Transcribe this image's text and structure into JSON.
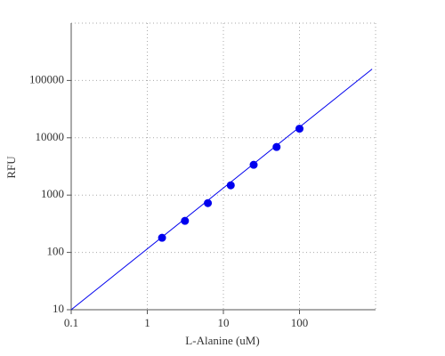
{
  "chart_data": {
    "type": "scatter",
    "x_label": "L-Alanine (uM)",
    "y_label": "RFU",
    "log_x": true,
    "log_y": true,
    "grid": true,
    "xlim": [
      0.1,
      1000
    ],
    "ylim": [
      10,
      1000000
    ],
    "xticks": [
      0.1,
      1,
      10,
      100
    ],
    "yticks": [
      10,
      100,
      1000,
      10000,
      100000
    ],
    "points": {
      "color": "#0000ee",
      "x": [
        1.5625,
        3.125,
        6.25,
        12.5,
        25,
        50,
        100
      ],
      "y": [
        180,
        355,
        725,
        1480,
        3380,
        6900,
        14400
      ]
    },
    "line": {
      "color": "#0000ee",
      "x": [
        0.1,
        900
      ],
      "y": [
        10,
        158000
      ]
    }
  }
}
